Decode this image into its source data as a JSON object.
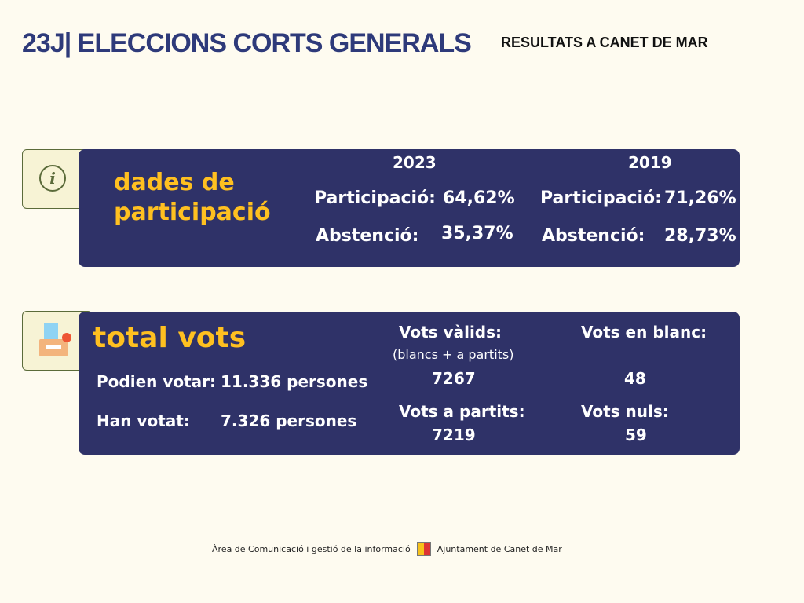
{
  "header": {
    "title": "23J| ELECCIONS CORTS GENERALS",
    "subtitle": "RESULTATS A CANET DE MAR"
  },
  "participation": {
    "panel_title": "dades de participació",
    "years": [
      "2023",
      "2019"
    ],
    "rows": [
      {
        "label": "Participació:",
        "values": [
          "64,62%",
          "71,26%"
        ]
      },
      {
        "label": "Abstenció:",
        "values": [
          "35,37%",
          "28,73%"
        ]
      }
    ]
  },
  "votes": {
    "panel_title": "total vots",
    "left": [
      {
        "label": "Podien votar:",
        "value": "11.336 persones"
      },
      {
        "label": "Han votat:",
        "value": "7.326 persones"
      }
    ],
    "right": [
      {
        "label": "Vots vàlids:",
        "sub": "(blancs + a partits)",
        "value": "7267"
      },
      {
        "label": "Vots en blanc:",
        "value": "48"
      },
      {
        "label": "Vots a partits:",
        "value": "7219"
      },
      {
        "label": "Vots nuls:",
        "value": "59"
      }
    ]
  },
  "footer": {
    "left": "Àrea de Comunicació i gestió de la informació",
    "right": "Ajuntament de Canet de Mar"
  }
}
